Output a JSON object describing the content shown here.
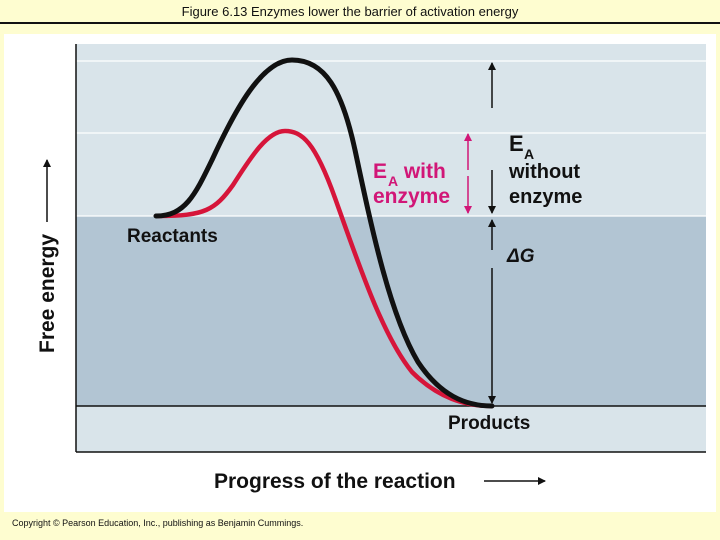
{
  "slide": {
    "title": "Figure 6.13 Enzymes lower the barrier of activation energy",
    "credit": "Copyright © Pearson Education, Inc., publishing as Benjamin Cummings."
  },
  "diagram": {
    "y_axis_label": "Free energy",
    "x_axis_label": "Progress of the reaction",
    "reactants_label": "Reactants",
    "products_label": "Products",
    "delta_g_label": "ΔG",
    "ea_without": {
      "e": "E",
      "sub": "A",
      "line2": "without",
      "line3": "enzyme"
    },
    "ea_with": {
      "e": "E",
      "sub": "A",
      "word": " with",
      "line2": "enzyme"
    },
    "colors": {
      "upper_band": "#d9e4ea",
      "lower_band": "#b2c5d3",
      "bottom_band": "#d9e4ea",
      "uncatalyzed_curve": "#111111",
      "catalyzed_curve": "#d6153a",
      "magenta_label": "#d11677",
      "arrow": "#111111"
    }
  }
}
